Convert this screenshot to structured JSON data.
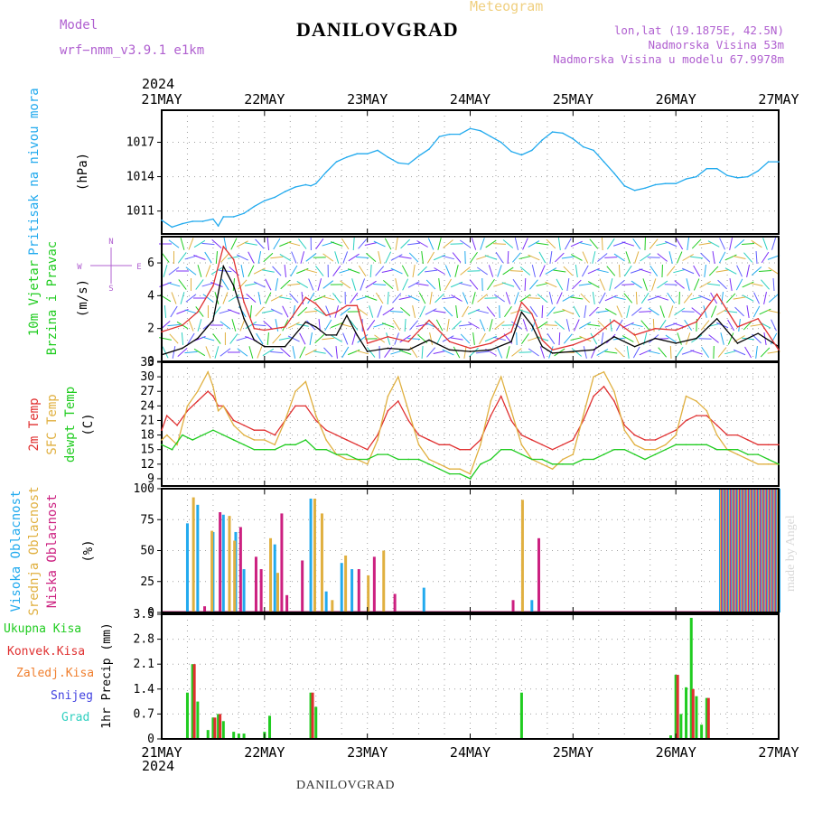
{
  "header": {
    "title": "DANILOVGRAD",
    "meteogram": "Meteogram",
    "model_label": "Model",
    "model_name": "wrf−nmm_v3.9.1 e1km",
    "lonlat": "lon,lat (19.1875E, 42.5N)",
    "elevation": "Nadmorska Visina 53m",
    "model_elevation": "Nadmorska Visina u modelu 67.9978m"
  },
  "footer": {
    "station": "DANILOVGRAD",
    "credit": "made by Angel"
  },
  "time_axis": {
    "labels": [
      "21MAY",
      "22MAY",
      "23MAY",
      "24MAY",
      "25MAY",
      "26MAY",
      "27MAY"
    ],
    "year": "2024"
  },
  "colors": {
    "pressure": "#22aaee",
    "wind_speed": "#000000",
    "wind_gust": "#e03030",
    "temp_2m": "#e03030",
    "temp_sfc": "#e0b040",
    "dewpoint": "#20cc20",
    "cloud_high": "#22aaee",
    "cloud_mid": "#e0b040",
    "cloud_low": "#cc2080",
    "precip_total": "#20cc20",
    "precip_conv": "#e03030",
    "precip_strat": "#f08030",
    "snow": "#4040e0",
    "hail": "#30d0c0"
  },
  "panel_labels": {
    "pressure": [
      "Pritisak na nivou mora",
      "(hPa)"
    ],
    "wind": [
      "10m Vjetar",
      "Brzina i Pravac",
      "(m/s)"
    ],
    "compass": [
      "N",
      "S",
      "W",
      "E"
    ],
    "temp": [
      "2m Temp",
      "SFC Temp",
      "dewpt Temp",
      "(C)"
    ],
    "cloud": [
      "Visoka Oblacnost",
      "Srednja Oblacnost",
      "Niska Oblacnost",
      "(%)"
    ],
    "precip": [
      "Ukupna Kisa",
      "Konvek.Kisa",
      "Zaledj.Kisa",
      "Snijeg",
      "Grad",
      "1hr Precip (mm)"
    ]
  },
  "chart_data": [
    {
      "type": "line",
      "x_unit": "days since 21MAY 00:00",
      "ylabel": "(hPa)",
      "ylim": [
        1009,
        1019.8
      ],
      "yticks": [
        1011,
        1014,
        1017
      ],
      "grid": true,
      "series": [
        {
          "name": "Pritisak na nivou mora",
          "x": [
            0,
            0.1,
            0.2,
            0.3,
            0.4,
            0.5,
            0.55,
            0.6,
            0.7,
            0.8,
            0.9,
            1,
            1.1,
            1.2,
            1.3,
            1.4,
            1.45,
            1.5,
            1.6,
            1.7,
            1.8,
            1.9,
            2,
            2.1,
            2.2,
            2.3,
            2.4,
            2.5,
            2.6,
            2.7,
            2.8,
            2.9,
            3,
            3.1,
            3.2,
            3.3,
            3.4,
            3.5,
            3.6,
            3.7,
            3.8,
            3.9,
            4,
            4.1,
            4.2,
            4.3,
            4.4,
            4.5,
            4.6,
            4.7,
            4.8,
            4.9,
            5,
            5.1,
            5.2,
            5.3,
            5.4,
            5.5,
            5.6,
            5.7,
            5.8,
            5.9,
            6
          ],
          "y": [
            1010.2,
            1009.6,
            1009.9,
            1010.1,
            1010.1,
            1010.3,
            1009.7,
            1010.5,
            1010.5,
            1010.8,
            1011.4,
            1011.9,
            1012.2,
            1012.7,
            1013.1,
            1013.3,
            1013.2,
            1013.4,
            1014.4,
            1015.3,
            1015.7,
            1016.0,
            1016.0,
            1016.3,
            1015.7,
            1015.2,
            1015.1,
            1015.8,
            1016.4,
            1017.5,
            1017.7,
            1017.7,
            1018.2,
            1018.0,
            1017.5,
            1017.0,
            1016.2,
            1015.9,
            1016.3,
            1017.2,
            1017.9,
            1017.8,
            1017.3,
            1016.6,
            1016.3,
            1015.3,
            1014.3,
            1013.2,
            1012.8,
            1013.0,
            1013.3,
            1013.4,
            1013.4,
            1013.8,
            1014.0,
            1014.7,
            1014.7,
            1014.1,
            1013.9,
            1014.0,
            1014.5,
            1015.3,
            1015.3
          ]
        }
      ]
    },
    {
      "type": "line",
      "x_unit": "days since 21MAY 00:00",
      "ylabel": "(m/s)",
      "ylim": [
        0,
        7.6
      ],
      "yticks": [
        0,
        2,
        4,
        6
      ],
      "grid": true,
      "series": [
        {
          "name": "10m Vjetar brzina",
          "x": [
            0,
            0.2,
            0.35,
            0.5,
            0.6,
            0.7,
            0.8,
            0.9,
            1,
            1.2,
            1.4,
            1.5,
            1.6,
            1.7,
            1.8,
            1.9,
            2,
            2.2,
            2.4,
            2.6,
            2.8,
            3,
            3.2,
            3.4,
            3.5,
            3.6,
            3.7,
            3.8,
            4,
            4.2,
            4.4,
            4.6,
            4.8,
            5,
            5.2,
            5.4,
            5.6,
            5.8,
            6
          ],
          "y": [
            0.4,
            0.8,
            1.4,
            2.5,
            5.8,
            4.6,
            2.6,
            1.3,
            0.9,
            0.9,
            2.4,
            2.1,
            1.6,
            1.6,
            2.8,
            1.6,
            0.6,
            0.8,
            0.7,
            1.3,
            0.7,
            0.6,
            0.7,
            1.2,
            3.0,
            2.2,
            0.9,
            0.5,
            0.6,
            0.7,
            1.5,
            0.9,
            1.4,
            1.1,
            1.4,
            2.6,
            1.1,
            1.7,
            0.9
          ]
        },
        {
          "name": "udar vjetra",
          "x": [
            0,
            0.2,
            0.35,
            0.5,
            0.6,
            0.7,
            0.8,
            0.9,
            1,
            1.2,
            1.4,
            1.5,
            1.6,
            1.7,
            1.8,
            1.9,
            2,
            2.2,
            2.4,
            2.6,
            2.8,
            3,
            3.2,
            3.4,
            3.5,
            3.6,
            3.7,
            3.8,
            4,
            4.2,
            4.4,
            4.6,
            4.8,
            5,
            5.2,
            5.4,
            5.6,
            5.8,
            6
          ],
          "y": [
            1.8,
            2.2,
            3.0,
            4.6,
            7.0,
            6.2,
            3.6,
            2.0,
            1.9,
            2.1,
            3.9,
            3.5,
            2.8,
            3.0,
            3.4,
            3.4,
            1.1,
            1.5,
            1.2,
            2.5,
            1.2,
            0.8,
            1.1,
            1.8,
            3.6,
            2.9,
            1.3,
            0.7,
            1.0,
            1.5,
            2.5,
            1.6,
            2.0,
            1.9,
            2.4,
            4.1,
            2.1,
            2.6,
            0.7
          ]
        }
      ]
    },
    {
      "type": "line",
      "x_unit": "days since 21MAY 00:00",
      "ylabel": "(C)",
      "ylim": [
        7.5,
        33
      ],
      "yticks": [
        9,
        12,
        15,
        18,
        21,
        24,
        27,
        30,
        33
      ],
      "grid": true,
      "series": [
        {
          "name": "2m Temp",
          "x": [
            0,
            0.05,
            0.15,
            0.25,
            0.35,
            0.45,
            0.5,
            0.55,
            0.6,
            0.7,
            0.8,
            0.9,
            1,
            1.1,
            1.2,
            1.3,
            1.4,
            1.5,
            1.6,
            1.7,
            1.8,
            1.9,
            2,
            2.1,
            2.2,
            2.3,
            2.4,
            2.5,
            2.6,
            2.7,
            2.8,
            2.9,
            3,
            3.1,
            3.2,
            3.3,
            3.4,
            3.5,
            3.6,
            3.7,
            3.8,
            3.9,
            4,
            4.1,
            4.2,
            4.3,
            4.4,
            4.5,
            4.6,
            4.7,
            4.8,
            4.9,
            5,
            5.1,
            5.2,
            5.3,
            5.4,
            5.5,
            5.6,
            5.7,
            5.8,
            5.9,
            6
          ],
          "y": [
            19,
            22,
            20,
            23,
            25,
            27,
            26,
            24,
            24,
            21,
            20,
            19,
            19,
            18,
            21,
            24,
            24,
            21,
            19,
            18,
            17,
            16,
            15,
            18,
            23,
            25,
            21,
            18,
            17,
            16,
            16,
            15,
            15,
            17,
            22,
            26,
            21,
            18,
            17,
            16,
            15,
            16,
            17,
            21,
            26,
            28,
            25,
            20,
            18,
            17,
            17,
            18,
            19,
            21,
            22,
            22,
            20,
            18,
            18,
            17,
            16,
            16,
            16
          ]
        },
        {
          "name": "SFC Temp",
          "x": [
            0,
            0.05,
            0.15,
            0.25,
            0.35,
            0.45,
            0.5,
            0.55,
            0.6,
            0.7,
            0.8,
            0.9,
            1,
            1.1,
            1.2,
            1.3,
            1.4,
            1.5,
            1.6,
            1.7,
            1.8,
            1.9,
            2,
            2.1,
            2.2,
            2.3,
            2.4,
            2.5,
            2.6,
            2.7,
            2.8,
            2.9,
            3,
            3.1,
            3.2,
            3.3,
            3.4,
            3.5,
            3.6,
            3.7,
            3.8,
            3.9,
            4,
            4.1,
            4.2,
            4.3,
            4.4,
            4.5,
            4.6,
            4.7,
            4.8,
            4.9,
            5,
            5.1,
            5.2,
            5.3,
            5.4,
            5.5,
            5.6,
            5.7,
            5.8,
            5.9,
            6
          ],
          "y": [
            17,
            18,
            16,
            24,
            27,
            31,
            28,
            23,
            24,
            20,
            18,
            17,
            17,
            16,
            21,
            27,
            29,
            22,
            17,
            14,
            13,
            13,
            12,
            17,
            26,
            30,
            23,
            16,
            13,
            12,
            11,
            11,
            10,
            16,
            25,
            30,
            23,
            16,
            13,
            12,
            11,
            13,
            14,
            22,
            30,
            31,
            27,
            19,
            16,
            15,
            15,
            16,
            18,
            26,
            25,
            23,
            18,
            15,
            14,
            13,
            12,
            12,
            12
          ]
        },
        {
          "name": "dewpt Temp",
          "x": [
            0,
            0.1,
            0.2,
            0.3,
            0.4,
            0.5,
            0.6,
            0.7,
            0.8,
            0.9,
            1,
            1.1,
            1.2,
            1.3,
            1.4,
            1.5,
            1.6,
            1.7,
            1.8,
            1.9,
            2,
            2.1,
            2.2,
            2.3,
            2.4,
            2.5,
            2.6,
            2.7,
            2.8,
            2.9,
            3,
            3.1,
            3.2,
            3.3,
            3.4,
            3.5,
            3.6,
            3.7,
            3.8,
            3.9,
            4,
            4.1,
            4.2,
            4.3,
            4.4,
            4.5,
            4.6,
            4.7,
            4.8,
            4.9,
            5,
            5.1,
            5.2,
            5.3,
            5.4,
            5.5,
            5.6,
            5.7,
            5.8,
            5.9,
            6
          ],
          "y": [
            16,
            15,
            18,
            17,
            18,
            19,
            18,
            17,
            16,
            15,
            15,
            15,
            16,
            16,
            17,
            15,
            15,
            14,
            14,
            13,
            13,
            14,
            14,
            13,
            13,
            13,
            12,
            11,
            10,
            10,
            9,
            12,
            13,
            15,
            15,
            14,
            13,
            13,
            12,
            12,
            12,
            13,
            13,
            14,
            15,
            15,
            14,
            13,
            14,
            15,
            16,
            16,
            16,
            16,
            15,
            15,
            15,
            14,
            14,
            13,
            12
          ]
        }
      ]
    },
    {
      "type": "bar",
      "x_unit": "days since 21MAY 00:00",
      "ylabel": "(%)",
      "ylim": [
        0,
        100
      ],
      "yticks": [
        0,
        25,
        50,
        75,
        100
      ],
      "grid": true,
      "series": [
        {
          "name": "Visoka Oblacnost",
          "x": [
            0.25,
            0.35,
            0.5,
            0.6,
            0.72,
            0.8,
            1.1,
            1.45,
            1.6,
            1.75,
            1.85,
            2.55,
            3.6
          ],
          "y": [
            72,
            87,
            65,
            79,
            65,
            35,
            55,
            92,
            17,
            40,
            35,
            20,
            10
          ]
        },
        {
          "name": "Srednja Oblacnost",
          "x": [
            0.3,
            0.48,
            0.65,
            0.7,
            1.05,
            1.12,
            1.48,
            1.55,
            1.65,
            1.78,
            2.0,
            2.15,
            3.5
          ],
          "y": [
            93,
            66,
            78,
            58,
            60,
            32,
            92,
            80,
            10,
            46,
            30,
            50,
            91
          ]
        },
        {
          "name": "Niska Oblacnost",
          "x": [
            0.4,
            0.55,
            0.75,
            0.9,
            0.95,
            1.15,
            1.2,
            1.35,
            1.9,
            2.05,
            2.25,
            3.4,
            3.65
          ],
          "y": [
            5,
            81,
            69,
            45,
            35,
            80,
            14,
            42,
            35,
            45,
            15,
            10,
            60
          ]
        }
      ]
    },
    {
      "type": "bar",
      "x_unit": "days since 21MAY 00:00",
      "ylabel": "1hr Precip (mm)",
      "ylim": [
        0,
        3.5
      ],
      "yticks": [
        0,
        0.7,
        1.4,
        2.1,
        2.8,
        3.5
      ],
      "grid": true,
      "series": [
        {
          "name": "Ukupna Kisa",
          "x": [
            0.25,
            0.3,
            0.35,
            0.45,
            0.5,
            0.55,
            0.6,
            0.7,
            0.75,
            0.8,
            1.0,
            1.05,
            1.45,
            1.5,
            3.5,
            4.95,
            5.0,
            5.05,
            5.0125,
            5.1,
            5.15,
            5.2,
            5.25,
            5.3
          ],
          "y": [
            1.3,
            2.1,
            1.05,
            0.25,
            0.6,
            0.7,
            0.5,
            0.2,
            0.15,
            0.15,
            0.2,
            0.65,
            1.3,
            0.9,
            1.3,
            0.1,
            1.8,
            0.7,
            1.6,
            1.45,
            3.4,
            1.2,
            0.4,
            1.15
          ]
        },
        {
          "name": "Konvek.Kisa",
          "x": [
            0.3,
            0.5,
            0.55,
            1.45,
            5.0,
            5.15,
            5.3
          ],
          "y": [
            2.1,
            0.6,
            0.7,
            1.3,
            1.8,
            1.4,
            1.15
          ]
        }
      ]
    }
  ]
}
